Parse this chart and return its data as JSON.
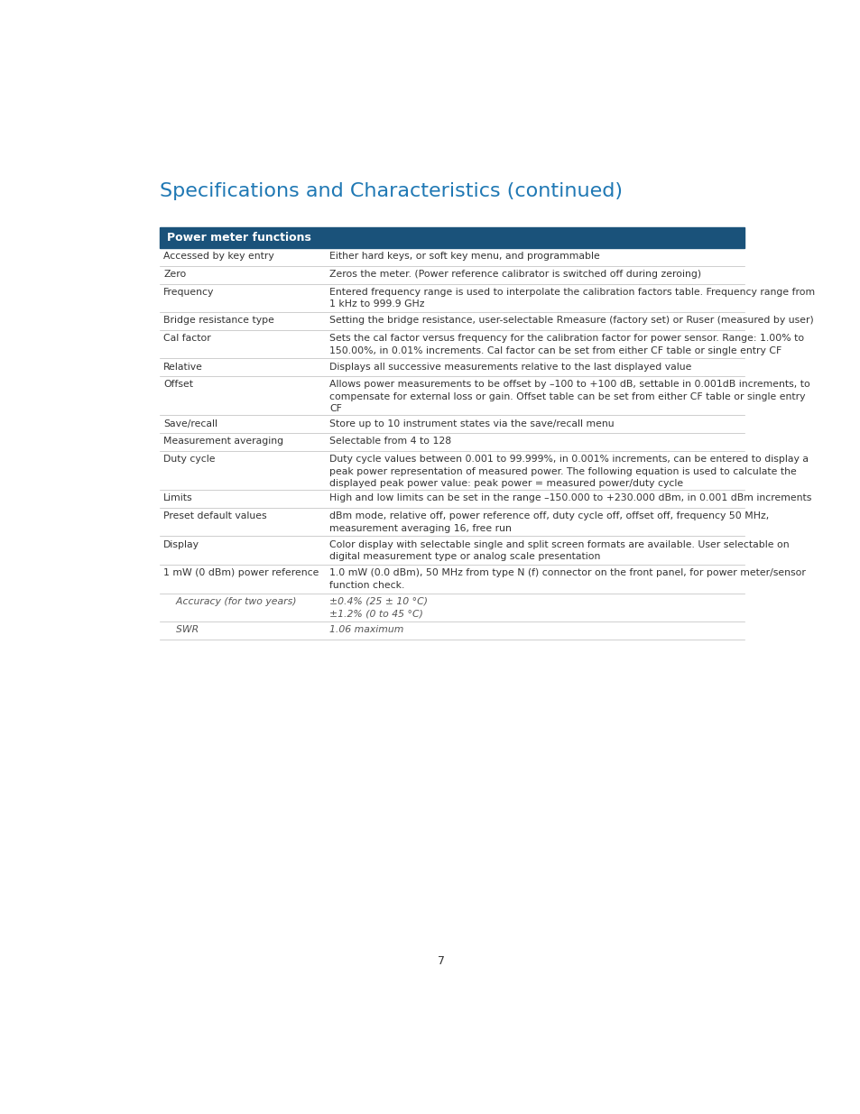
{
  "title": "Specifications and Characteristics (continued)",
  "title_color": "#1F78B4",
  "title_fontsize": 16,
  "page_number": "7",
  "background_color": "#ffffff",
  "table_header": "Power meter functions",
  "table_header_bg": "#1A527A",
  "table_header_text_color": "#ffffff",
  "table_header_fontsize": 9,
  "row_fontsize": 7.8,
  "row_text_color": "#333333",
  "divider_color": "#bbbbbb",
  "italic_color": "#555555",
  "rows": [
    {
      "label": "Accessed by key entry",
      "value": "Either hard keys, or soft key menu, and programmable",
      "italic": false,
      "n_value_lines": 1,
      "n_label_lines": 1
    },
    {
      "label": "Zero",
      "value": "Zeros the meter. (Power reference calibrator is switched off during zeroing)",
      "italic": false,
      "n_value_lines": 1,
      "n_label_lines": 1
    },
    {
      "label": "Frequency",
      "value": "Entered frequency range is used to interpolate the calibration factors table. Frequency range from\n1 kHz to 999.9 GHz",
      "italic": false,
      "n_value_lines": 2,
      "n_label_lines": 1
    },
    {
      "label": "Bridge resistance type",
      "value": "Setting the bridge resistance, user-selectable Rmeasure (factory set) or Ruser (measured by user)",
      "italic": false,
      "n_value_lines": 1,
      "n_label_lines": 1
    },
    {
      "label": "Cal factor",
      "value": "Sets the cal factor versus frequency for the calibration factor for power sensor. Range: 1.00% to\n150.00%, in 0.01% increments. Cal factor can be set from either CF table or single entry CF",
      "italic": false,
      "n_value_lines": 2,
      "n_label_lines": 1
    },
    {
      "label": "Relative",
      "value": "Displays all successive measurements relative to the last displayed value",
      "italic": false,
      "n_value_lines": 1,
      "n_label_lines": 1
    },
    {
      "label": "Offset",
      "value": "Allows power measurements to be offset by –100 to +100 dB, settable in 0.001dB increments, to\ncompensate for external loss or gain. Offset table can be set from either CF table or single entry\nCF",
      "italic": false,
      "n_value_lines": 3,
      "n_label_lines": 1
    },
    {
      "label": "Save/recall",
      "value": "Store up to 10 instrument states via the save/recall menu",
      "italic": false,
      "n_value_lines": 1,
      "n_label_lines": 1
    },
    {
      "label": "Measurement averaging",
      "value": "Selectable from 4 to 128",
      "italic": false,
      "n_value_lines": 1,
      "n_label_lines": 1
    },
    {
      "label": "Duty cycle",
      "value": "Duty cycle values between 0.001 to 99.999%, in 0.001% increments, can be entered to display a\npeak power representation of measured power. The following equation is used to calculate the\ndisplayed peak power value: peak power = measured power/duty cycle",
      "italic": false,
      "n_value_lines": 3,
      "n_label_lines": 1
    },
    {
      "label": "Limits",
      "value": "High and low limits can be set in the range –150.000 to +230.000 dBm, in 0.001 dBm increments",
      "italic": false,
      "n_value_lines": 1,
      "n_label_lines": 1
    },
    {
      "label": "Preset default values",
      "value": "dBm mode, relative off, power reference off, duty cycle off, offset off, frequency 50 MHz,\nmeasurement averaging 16, free run",
      "italic": false,
      "n_value_lines": 2,
      "n_label_lines": 1
    },
    {
      "label": "Display",
      "value": "Color display with selectable single and split screen formats are available. User selectable on\ndigital measurement type or analog scale presentation",
      "italic": false,
      "n_value_lines": 2,
      "n_label_lines": 1
    },
    {
      "label": "1 mW (0 dBm) power reference",
      "value": "1.0 mW (0.0 dBm), 50 MHz from type N (f) connector on the front panel, for power meter/sensor\nfunction check.",
      "italic": false,
      "n_value_lines": 2,
      "n_label_lines": 1
    },
    {
      "label": "    Accuracy (for two years)",
      "value": "±0.4% (25 ± 10 °C)\n±1.2% (0 to 45 °C)",
      "italic": true,
      "n_value_lines": 2,
      "n_label_lines": 1
    },
    {
      "label": "    SWR",
      "value": "1.06 maximum",
      "italic": true,
      "n_value_lines": 1,
      "n_label_lines": 1
    }
  ]
}
